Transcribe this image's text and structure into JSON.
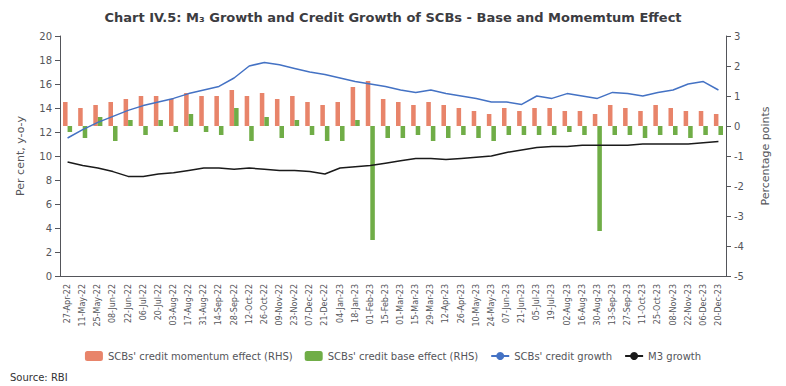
{
  "chart_data": {
    "type": "bar",
    "title": "Chart IV.5: M₃ Growth and Credit Growth of SCBs - Base and Momemtum Effect",
    "ylabel": "Per cent, y-o-y",
    "y2label": "Percentage points",
    "annotations": [
      "Source: RBI"
    ],
    "ylim": [
      0,
      20
    ],
    "yticks": [
      0,
      2,
      4,
      6,
      8,
      10,
      12,
      14,
      16,
      18,
      20
    ],
    "y2lim": [
      -5,
      3
    ],
    "y2ticks": [
      -5,
      -4,
      -3,
      -2,
      -1,
      0,
      1,
      2,
      3
    ],
    "grid": false,
    "legend": "bottom",
    "categories": [
      "27-Apr-22",
      "11-May-22",
      "25-May-22",
      "08-Jun-22",
      "22-Jun-22",
      "06-Jul-22",
      "20-Jul-22",
      "03-Aug-22",
      "17-Aug-22",
      "31-Aug-22",
      "14-Sep-22",
      "28-Sep-22",
      "12-Oct-22",
      "26-Oct-22",
      "09-Nov-22",
      "23-Nov-22",
      "07-Dec-22",
      "21-Dec-22",
      "04-Jan-23",
      "18-Jan-23",
      "01-Feb-23",
      "15-Feb-23",
      "01-Mar-23",
      "15-Mar-23",
      "29-Mar-23",
      "12-Apr-23",
      "26-Apr-23",
      "10-May-23",
      "24-May-23",
      "07-Jun-23",
      "21-Jun-23",
      "05-Jul-23",
      "19-Jul-23",
      "02-Aug-23",
      "16-Aug-23",
      "30-Aug-23",
      "13-Sep-23",
      "27-Sep-23",
      "11-Oct-23",
      "25-Oct-23",
      "08-Nov-23",
      "22-Nov-23",
      "06-Dec-23",
      "20-Dec-23"
    ],
    "series": [
      {
        "name": "SCBs' credit momentum effect (RHS)",
        "type": "bar",
        "axis": "y2",
        "color": "#E8846A",
        "values": [
          0.8,
          0.6,
          0.7,
          0.8,
          0.9,
          1.0,
          1.0,
          0.9,
          1.1,
          1.0,
          1.0,
          1.2,
          1.0,
          1.1,
          0.9,
          1.0,
          0.8,
          0.7,
          0.8,
          1.3,
          1.5,
          0.9,
          0.8,
          0.7,
          0.8,
          0.7,
          0.6,
          0.5,
          0.4,
          0.6,
          0.5,
          0.6,
          0.6,
          0.5,
          0.5,
          0.4,
          0.7,
          0.6,
          0.5,
          0.7,
          0.6,
          0.5,
          0.5,
          0.4
        ]
      },
      {
        "name": "SCBs' credit base effect (RHS)",
        "type": "bar",
        "axis": "y2",
        "color": "#70AD47",
        "values": [
          -0.2,
          -0.4,
          0.3,
          -0.5,
          0.2,
          -0.3,
          0.2,
          -0.2,
          0.4,
          -0.2,
          -0.3,
          0.6,
          -0.5,
          0.3,
          -0.4,
          0.2,
          -0.3,
          -0.5,
          -0.5,
          0.2,
          -3.8,
          -0.4,
          -0.4,
          -0.3,
          -0.5,
          -0.4,
          -0.3,
          -0.4,
          -0.5,
          -0.3,
          -0.3,
          -0.3,
          -0.3,
          -0.2,
          -0.3,
          -3.5,
          -0.3,
          -0.3,
          -0.4,
          -0.3,
          -0.3,
          -0.4,
          -0.3,
          -0.3
        ]
      },
      {
        "name": "SCBs' credit growth",
        "type": "line",
        "color": "#4472C4",
        "values": [
          11.5,
          12.2,
          12.8,
          13.3,
          13.8,
          14.2,
          14.5,
          14.8,
          15.2,
          15.5,
          15.8,
          16.5,
          17.5,
          17.8,
          17.6,
          17.3,
          17.0,
          16.8,
          16.5,
          16.2,
          16.0,
          15.8,
          15.5,
          15.3,
          15.5,
          15.2,
          15.0,
          14.8,
          14.5,
          14.5,
          14.3,
          15.0,
          14.8,
          15.2,
          15.0,
          14.8,
          15.3,
          15.2,
          15.0,
          15.3,
          15.5,
          16.0,
          16.2,
          15.5
        ]
      },
      {
        "name": "M3 growth",
        "type": "line",
        "color": "#1a1a1a",
        "values": [
          9.5,
          9.2,
          9.0,
          8.7,
          8.3,
          8.3,
          8.5,
          8.6,
          8.8,
          9.0,
          9.0,
          8.9,
          9.0,
          8.9,
          8.8,
          8.8,
          8.7,
          8.5,
          9.0,
          9.1,
          9.2,
          9.4,
          9.6,
          9.8,
          9.8,
          9.7,
          9.8,
          9.9,
          10.0,
          10.3,
          10.5,
          10.7,
          10.8,
          10.8,
          10.9,
          10.9,
          10.9,
          10.9,
          11.0,
          11.0,
          11.0,
          11.0,
          11.1,
          11.2
        ]
      }
    ]
  }
}
